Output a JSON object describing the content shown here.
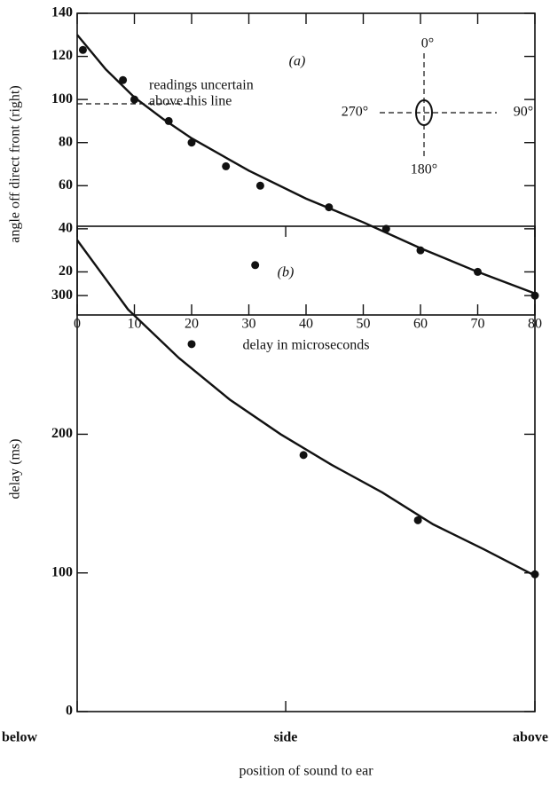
{
  "chart_data": [
    {
      "type": "scatter",
      "panel_label": "(a)",
      "xlabel": "delay in microseconds",
      "ylabel": "angle off direct front (right)",
      "xlim": [
        0,
        80
      ],
      "xticks": [
        0,
        10,
        20,
        30,
        40,
        50,
        60,
        70,
        80
      ],
      "ylim": [
        0,
        140
      ],
      "yticks": [
        20,
        40,
        60,
        80,
        100,
        120,
        140
      ],
      "series": [
        {
          "mode": "markers",
          "color": "#111111",
          "x": [
            1,
            8,
            10,
            16,
            20,
            26,
            32,
            44,
            54,
            60,
            70,
            80
          ],
          "values": [
            123,
            109,
            100,
            90,
            80,
            69,
            60,
            50,
            40,
            30,
            20,
            9
          ]
        },
        {
          "mode": "line",
          "color": "#111111",
          "x": [
            0,
            5,
            10,
            15,
            20,
            30,
            40,
            50,
            60,
            70,
            80
          ],
          "values": [
            130,
            114,
            101,
            91,
            82,
            67,
            54,
            43,
            31,
            20,
            10
          ]
        }
      ],
      "reference_line": {
        "value": 98,
        "xrange": [
          0,
          20
        ]
      },
      "annotations": [
        "readings uncertain",
        "above this line"
      ],
      "compass": [
        "0°",
        "90°",
        "180°",
        "270°"
      ]
    },
    {
      "type": "scatter",
      "panel_label": "(b)",
      "xlabel": "position of sound to ear",
      "ylabel": "delay (ms)",
      "xlim": [
        0,
        180
      ],
      "xticks": [
        {
          "value": 0,
          "label": "below"
        },
        {
          "value": 82,
          "label": "side"
        },
        {
          "value": 180,
          "label": "above"
        }
      ],
      "ylim": [
        0,
        350
      ],
      "yticks": [
        0,
        100,
        200,
        300
      ],
      "series": [
        {
          "mode": "markers",
          "color": "#111111",
          "x": [
            45,
            70,
            89,
            134,
            180
          ],
          "values": [
            265,
            322,
            185,
            138,
            99
          ]
        },
        {
          "mode": "line",
          "color": "#111111",
          "x": [
            0,
            20,
            40,
            60,
            80,
            100,
            120,
            140,
            160,
            180
          ],
          "values": [
            340,
            290,
            255,
            225,
            200,
            178,
            158,
            135,
            117,
            98
          ]
        }
      ]
    }
  ]
}
